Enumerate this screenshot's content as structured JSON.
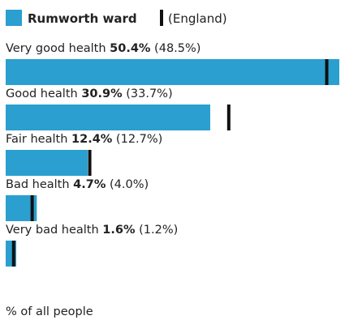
{
  "legend": {
    "area_label": "Rumworth ward",
    "comparison_label": "(England)"
  },
  "footer": {
    "unit_label": "% of all people"
  },
  "colors": {
    "bar": "#2a9fd0",
    "marker": "#111111",
    "text": "#222222"
  },
  "chart_data": {
    "type": "bar",
    "orientation": "horizontal",
    "title": "",
    "xlabel": "% of all people",
    "categories": [
      "Very good health",
      "Good health",
      "Fair health",
      "Bad health",
      "Very bad health"
    ],
    "series": [
      {
        "name": "Rumworth ward",
        "values": [
          50.4,
          30.9,
          12.4,
          4.7,
          1.6
        ]
      },
      {
        "name": "England",
        "values": [
          48.5,
          33.7,
          12.7,
          4.0,
          1.2
        ]
      }
    ],
    "value_labels": [
      "50.4%",
      "30.9%",
      "12.4%",
      "4.7%",
      "1.6%"
    ],
    "comparison_labels": [
      "(48.5%)",
      "(33.7%)",
      "(12.7%)",
      "(4.0%)",
      "(1.2%)"
    ],
    "xlim": [
      0,
      50.4
    ]
  }
}
